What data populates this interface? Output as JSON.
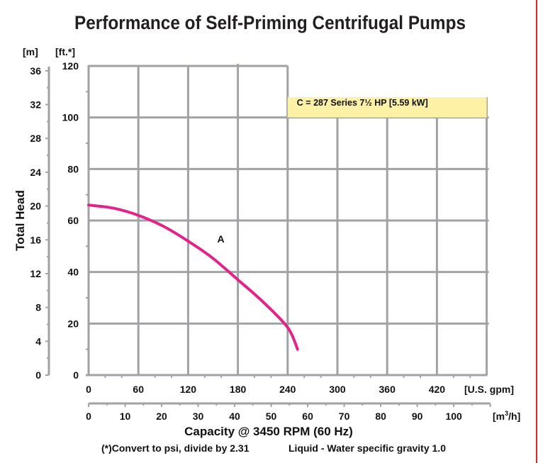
{
  "colors": {
    "curve": "#e0248a",
    "grid": "#a0a2a5",
    "legend_bg": "#fdf1a6",
    "border_right": "#d9262c",
    "text": "#111111"
  },
  "chart_data": {
    "type": "line",
    "title": "Performance of Self-Priming Centrifugal Pumps",
    "xlabel": "Capacity @ 3450 RPM (60 Hz)",
    "ylabel": "Total Head",
    "x_primary": {
      "unit": "[U.S. gpm]",
      "range": [
        0,
        480
      ],
      "ticks": [
        0,
        60,
        120,
        180,
        240,
        300,
        360,
        420
      ],
      "tick_labels": [
        "0",
        "60",
        "120",
        "180",
        "240",
        "300",
        "360",
        "420"
      ]
    },
    "x_secondary": {
      "unit_prefix": "[m",
      "unit_sup": "3",
      "unit_suffix": "/h]",
      "ticks": [
        0,
        10,
        20,
        30,
        40,
        50,
        60,
        70,
        80,
        90,
        100
      ],
      "tick_labels": [
        "0",
        "10",
        "20",
        "30",
        "40",
        "50",
        "60",
        "70",
        "80",
        "90",
        "100"
      ]
    },
    "y_primary": {
      "unit": "[ft.*]",
      "range": [
        0,
        120
      ],
      "ticks": [
        0,
        20,
        40,
        60,
        80,
        100,
        120
      ],
      "tick_labels": [
        "0",
        "20",
        "40",
        "60",
        "80",
        "100",
        "120"
      ]
    },
    "y_secondary": {
      "unit": "[m]",
      "ticks": [
        0,
        4,
        8,
        12,
        16,
        20,
        24,
        28,
        32,
        36
      ],
      "tick_labels": [
        "0",
        "4",
        "8",
        "12",
        "16",
        "20",
        "24",
        "28",
        "32",
        "36"
      ]
    },
    "grid": true,
    "legend": {
      "text": "C = 287 Series 7½ HP [5.59 kW]",
      "placement": "top-right"
    },
    "series": [
      {
        "name": "A",
        "x_gpm": [
          0,
          30,
          60,
          90,
          120,
          150,
          180,
          210,
          240,
          252
        ],
        "y_ft": [
          66,
          64.8,
          62,
          57.8,
          52,
          45.3,
          37,
          28.5,
          18.5,
          10
        ]
      }
    ],
    "notes": [
      "(*)Convert to psi, divide by 2.31",
      "Liquid - Water specific gravity 1.0"
    ]
  }
}
